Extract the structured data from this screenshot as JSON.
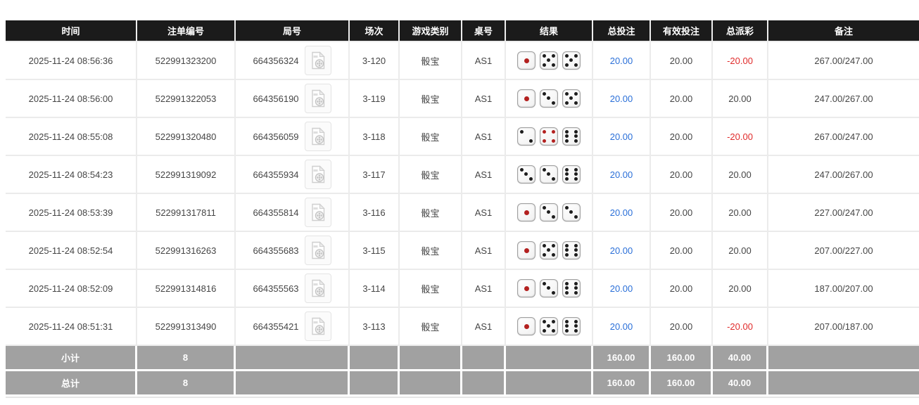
{
  "table": {
    "columns": [
      {
        "key": "time",
        "label": "时间"
      },
      {
        "key": "bet_id",
        "label": "注单编号"
      },
      {
        "key": "round",
        "label": "局号"
      },
      {
        "key": "session",
        "label": "场次"
      },
      {
        "key": "game_type",
        "label": "游戏类别"
      },
      {
        "key": "table_no",
        "label": "桌号"
      },
      {
        "key": "result",
        "label": "结果"
      },
      {
        "key": "total_bet",
        "label": "总投注"
      },
      {
        "key": "valid_bet",
        "label": "有效投注"
      },
      {
        "key": "payout",
        "label": "总派彩"
      },
      {
        "key": "remark",
        "label": "备注"
      }
    ],
    "rows": [
      {
        "time": "2025-11-24 08:56:36",
        "bet_id": "522991323200",
        "round": "664356324",
        "session": "3-120",
        "game_type": "骰宝",
        "table_no": "AS1",
        "dice": [
          1,
          5,
          5
        ],
        "total_bet": "20.00",
        "valid_bet": "20.00",
        "payout": "-20.00",
        "remark": "267.00/247.00"
      },
      {
        "time": "2025-11-24 08:56:00",
        "bet_id": "522991322053",
        "round": "664356190",
        "session": "3-119",
        "game_type": "骰宝",
        "table_no": "AS1",
        "dice": [
          1,
          3,
          5
        ],
        "total_bet": "20.00",
        "valid_bet": "20.00",
        "payout": "20.00",
        "remark": "247.00/267.00"
      },
      {
        "time": "2025-11-24 08:55:08",
        "bet_id": "522991320480",
        "round": "664356059",
        "session": "3-118",
        "game_type": "骰宝",
        "table_no": "AS1",
        "dice": [
          2,
          4,
          6
        ],
        "total_bet": "20.00",
        "valid_bet": "20.00",
        "payout": "-20.00",
        "remark": "267.00/247.00"
      },
      {
        "time": "2025-11-24 08:54:23",
        "bet_id": "522991319092",
        "round": "664355934",
        "session": "3-117",
        "game_type": "骰宝",
        "table_no": "AS1",
        "dice": [
          3,
          3,
          6
        ],
        "total_bet": "20.00",
        "valid_bet": "20.00",
        "payout": "20.00",
        "remark": "247.00/267.00"
      },
      {
        "time": "2025-11-24 08:53:39",
        "bet_id": "522991317811",
        "round": "664355814",
        "session": "3-116",
        "game_type": "骰宝",
        "table_no": "AS1",
        "dice": [
          1,
          3,
          3
        ],
        "total_bet": "20.00",
        "valid_bet": "20.00",
        "payout": "20.00",
        "remark": "227.00/247.00"
      },
      {
        "time": "2025-11-24 08:52:54",
        "bet_id": "522991316263",
        "round": "664355683",
        "session": "3-115",
        "game_type": "骰宝",
        "table_no": "AS1",
        "dice": [
          1,
          5,
          6
        ],
        "total_bet": "20.00",
        "valid_bet": "20.00",
        "payout": "20.00",
        "remark": "207.00/227.00"
      },
      {
        "time": "2025-11-24 08:52:09",
        "bet_id": "522991314816",
        "round": "664355563",
        "session": "3-114",
        "game_type": "骰宝",
        "table_no": "AS1",
        "dice": [
          1,
          3,
          6
        ],
        "total_bet": "20.00",
        "valid_bet": "20.00",
        "payout": "20.00",
        "remark": "187.00/207.00"
      },
      {
        "time": "2025-11-24 08:51:31",
        "bet_id": "522991313490",
        "round": "664355421",
        "session": "3-113",
        "game_type": "骰宝",
        "table_no": "AS1",
        "dice": [
          1,
          5,
          6
        ],
        "total_bet": "20.00",
        "valid_bet": "20.00",
        "payout": "-20.00",
        "remark": "207.00/187.00"
      }
    ],
    "subtotal": {
      "label": "小计",
      "count": "8",
      "total_bet": "160.00",
      "valid_bet": "160.00",
      "payout": "40.00"
    },
    "total": {
      "label": "总计",
      "count": "8",
      "total_bet": "160.00",
      "valid_bet": "160.00",
      "payout": "40.00"
    }
  },
  "colors": {
    "header_bg": "#1b1b1b",
    "bet_blue": "#2a6fd8",
    "payout_red": "#e02b2b",
    "summary_bg": "#a1a1a1",
    "red_pip": "#b3201f"
  }
}
